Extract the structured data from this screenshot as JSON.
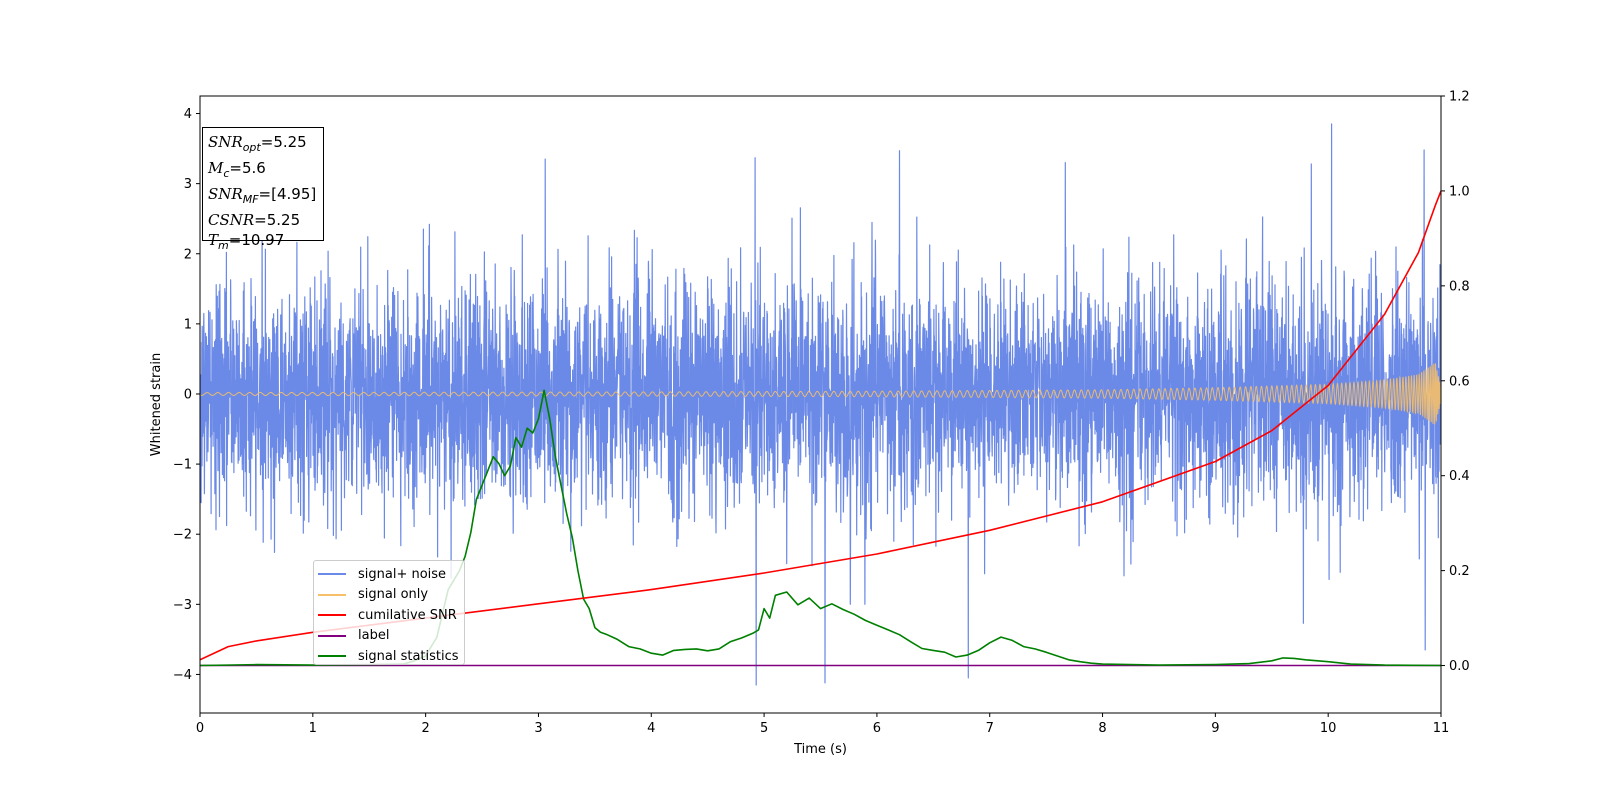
{
  "chart_data": {
    "type": "line",
    "xlabel": "Time (s)",
    "ylabel": "Whitened strain",
    "xlim": [
      0,
      11
    ],
    "ylim": [
      -4.55,
      4.25
    ],
    "y2lim": [
      -0.1,
      1.2
    ],
    "x_ticks": [
      "0",
      "1",
      "2",
      "3",
      "4",
      "5",
      "6",
      "7",
      "8",
      "9",
      "10",
      "11"
    ],
    "y_ticks": [
      "4",
      "3",
      "2",
      "1",
      "0",
      "−1",
      "−2",
      "−3",
      "−4"
    ],
    "y2_ticks": [
      "1.2",
      "1.0",
      "0.8",
      "0.6",
      "0.4",
      "0.2",
      "0.0"
    ],
    "grid": false,
    "legend_position": "lower-left",
    "annotations": {
      "snr_opt": "5.25",
      "mc": "5.6",
      "snr_mf": "[4.95]",
      "csnr": "5.25",
      "tm": "10.97"
    },
    "series": [
      {
        "name": "signal+ noise",
        "color": "#6b89e6",
        "axis": "left",
        "description_envelope": {
          "x": [
            0,
            11
          ],
          "typical_max": 2.2,
          "typical_min": -2.2
        },
        "notable_peaks": [
          {
            "x": 3.06,
            "y": 3.35
          },
          {
            "x": 4.92,
            "y": 3.37
          },
          {
            "x": 6.2,
            "y": 3.47
          },
          {
            "x": 7.67,
            "y": 3.3
          },
          {
            "x": 9.85,
            "y": 3.28
          },
          {
            "x": 10.03,
            "y": 3.85
          },
          {
            "x": 10.85,
            "y": 3.48
          }
        ],
        "notable_troughs": [
          {
            "x": 4.93,
            "y": -4.15
          },
          {
            "x": 5.54,
            "y": -4.12
          },
          {
            "x": 6.81,
            "y": -4.05
          },
          {
            "x": 9.78,
            "y": -3.27
          },
          {
            "x": 10.86,
            "y": -3.65
          }
        ]
      },
      {
        "name": "signal only",
        "color": "#f6c068",
        "axis": "left",
        "envelope": {
          "x": [
            0,
            2,
            4,
            6,
            8,
            9,
            10,
            10.5,
            10.8,
            10.95,
            11
          ],
          "amp": [
            0.02,
            0.025,
            0.03,
            0.04,
            0.06,
            0.09,
            0.14,
            0.2,
            0.28,
            0.45,
            0.1
          ]
        }
      },
      {
        "name": "cumilative SNR",
        "color": "#ff0000",
        "axis": "right",
        "x": [
          0,
          0.25,
          0.5,
          1,
          2,
          3,
          4,
          5,
          6,
          7,
          8,
          9,
          9.5,
          10,
          10.5,
          10.8,
          10.95,
          11
        ],
        "y": [
          0.012,
          0.04,
          0.052,
          0.07,
          0.1,
          0.13,
          0.16,
          0.195,
          0.235,
          0.285,
          0.345,
          0.43,
          0.495,
          0.59,
          0.74,
          0.87,
          0.97,
          1.0
        ]
      },
      {
        "name": "label",
        "color": "#800080",
        "axis": "right",
        "x": [
          0,
          11
        ],
        "y": [
          0,
          0
        ]
      },
      {
        "name": "signal statistics",
        "color": "#008000",
        "axis": "right",
        "x": [
          0,
          0.5,
          1,
          1.5,
          1.8,
          1.9,
          2.0,
          2.1,
          2.2,
          2.3,
          2.35,
          2.4,
          2.45,
          2.5,
          2.55,
          2.6,
          2.65,
          2.7,
          2.75,
          2.8,
          2.85,
          2.9,
          2.95,
          3.0,
          3.05,
          3.1,
          3.15,
          3.2,
          3.25,
          3.3,
          3.35,
          3.4,
          3.45,
          3.5,
          3.55,
          3.6,
          3.7,
          3.8,
          3.9,
          4.0,
          4.1,
          4.2,
          4.3,
          4.4,
          4.5,
          4.6,
          4.7,
          4.8,
          4.9,
          4.95,
          5.0,
          5.05,
          5.1,
          5.2,
          5.3,
          5.4,
          5.5,
          5.6,
          5.7,
          5.8,
          5.9,
          6.0,
          6.1,
          6.2,
          6.3,
          6.4,
          6.5,
          6.6,
          6.7,
          6.8,
          6.9,
          7.0,
          7.1,
          7.2,
          7.3,
          7.4,
          7.5,
          7.6,
          7.7,
          7.8,
          7.9,
          8.0,
          8.5,
          9.0,
          9.3,
          9.5,
          9.6,
          9.7,
          9.8,
          10.0,
          10.2,
          10.5,
          11.0
        ],
        "y": [
          0.0,
          0.002,
          0.001,
          0.002,
          0.003,
          0.01,
          0.02,
          0.06,
          0.16,
          0.2,
          0.23,
          0.28,
          0.35,
          0.38,
          0.41,
          0.44,
          0.425,
          0.4,
          0.42,
          0.48,
          0.46,
          0.5,
          0.49,
          0.52,
          0.58,
          0.52,
          0.44,
          0.38,
          0.32,
          0.27,
          0.2,
          0.14,
          0.12,
          0.08,
          0.07,
          0.066,
          0.055,
          0.04,
          0.035,
          0.026,
          0.022,
          0.032,
          0.034,
          0.035,
          0.031,
          0.035,
          0.05,
          0.058,
          0.068,
          0.075,
          0.12,
          0.1,
          0.148,
          0.155,
          0.128,
          0.142,
          0.12,
          0.13,
          0.118,
          0.108,
          0.095,
          0.085,
          0.075,
          0.065,
          0.05,
          0.036,
          0.032,
          0.028,
          0.018,
          0.022,
          0.032,
          0.048,
          0.06,
          0.053,
          0.04,
          0.035,
          0.028,
          0.02,
          0.012,
          0.008,
          0.005,
          0.003,
          0.001,
          0.002,
          0.004,
          0.01,
          0.016,
          0.015,
          0.012,
          0.008,
          0.003,
          0.001,
          0.0
        ]
      }
    ]
  }
}
